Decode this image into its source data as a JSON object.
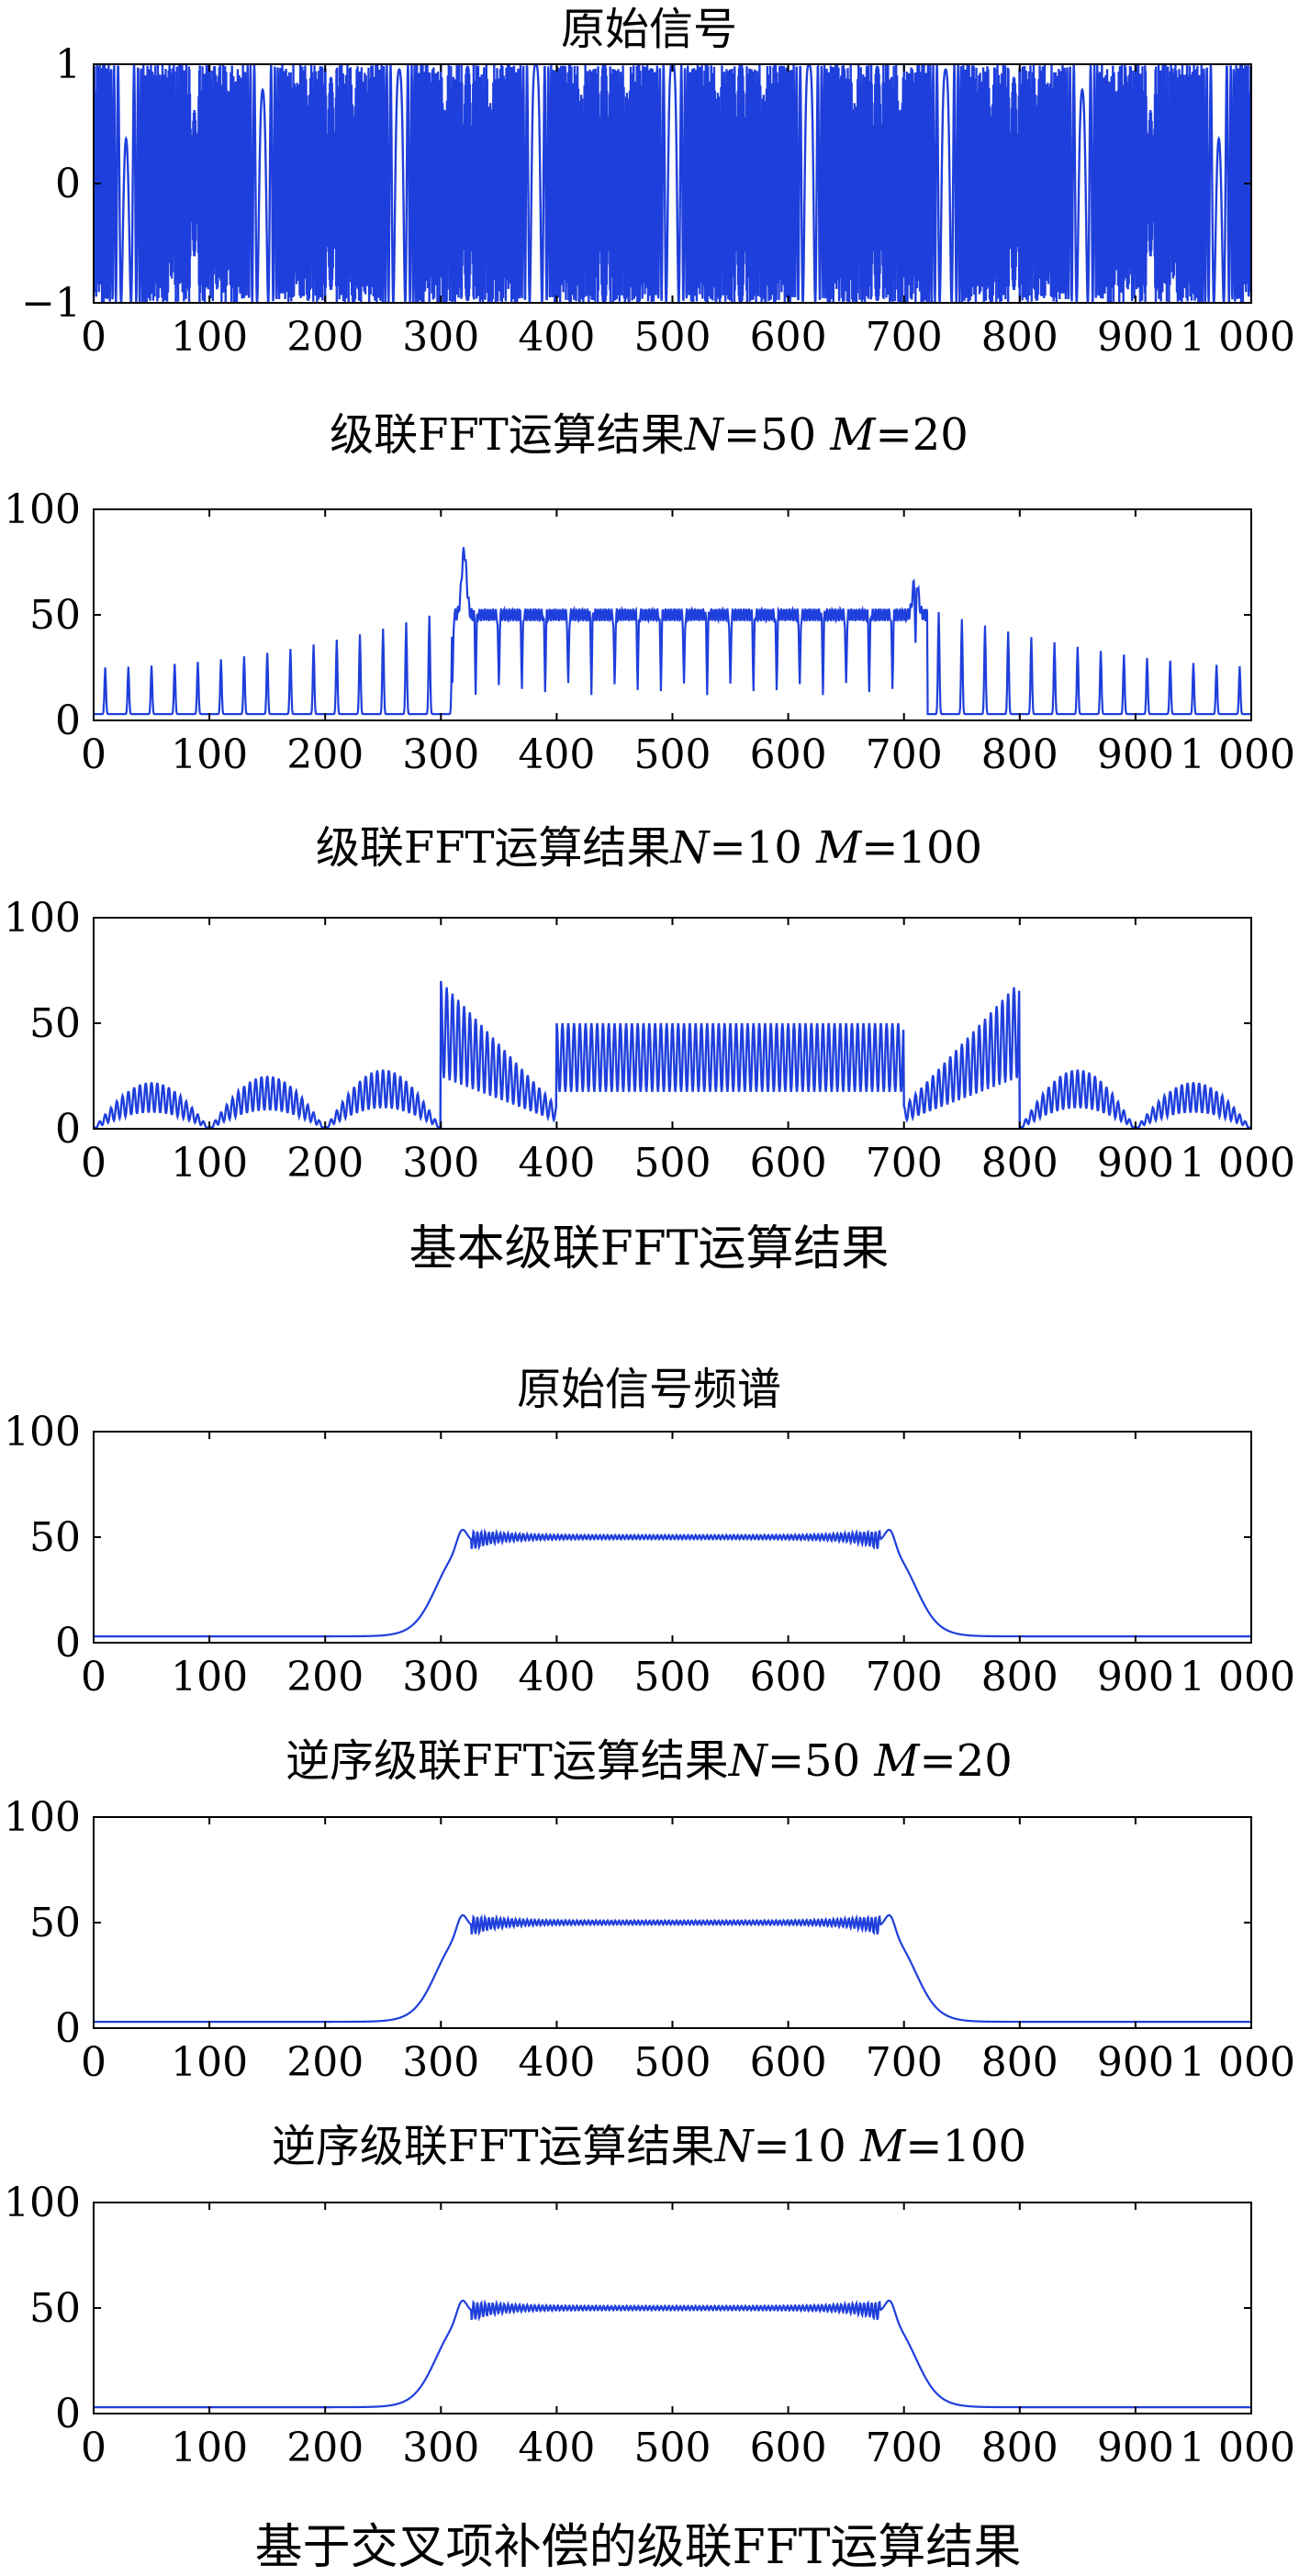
{
  "captions": {
    "top": "基本级联FFT运算结果",
    "bottom": "基于交叉项补偿的级联FFT运算结果"
  },
  "colors": {
    "line": "#1f3fdc",
    "axis": "#000000"
  },
  "chart_data": [
    {
      "id": "c1",
      "type": "line",
      "title": "原始信号",
      "xlim": [
        0,
        1000
      ],
      "ylim": [
        -1,
        1
      ],
      "xticks": [
        "0",
        "100",
        "200",
        "300",
        "400",
        "500",
        "600",
        "700",
        "800",
        "900",
        "1 000"
      ],
      "yticks": [
        "1",
        "0",
        "−1"
      ],
      "ytick_values": [
        1,
        0,
        -1
      ],
      "series": [
        {
          "kind": "chirp",
          "center": 500,
          "rate": 0.000565
        }
      ]
    },
    {
      "id": "c2",
      "type": "line",
      "title": "级联FFT运算结果",
      "title_n": "50",
      "title_m": "20",
      "xlim": [
        0,
        1000
      ],
      "ylim": [
        0,
        100
      ],
      "xticks": [
        "0",
        "100",
        "200",
        "300",
        "400",
        "500",
        "600",
        "700",
        "800",
        "900",
        "1 000"
      ],
      "yticks": [
        "100",
        "50",
        "0"
      ],
      "ytick_values": [
        100,
        50,
        0
      ],
      "series": [
        {
          "kind": "cascade",
          "period": 20,
          "band": [
            310,
            720
          ],
          "level": 50,
          "spike_out": 22,
          "spike_edge": 80,
          "spike_in_low": 15
        }
      ]
    },
    {
      "id": "c3",
      "type": "line",
      "title": "级联FFT运算结果",
      "title_n": "10",
      "title_m": "100",
      "xlim": [
        0,
        1000
      ],
      "ylim": [
        0,
        100
      ],
      "xticks": [
        "0",
        "100",
        "200",
        "300",
        "400",
        "500",
        "600",
        "700",
        "800",
        "900",
        "1 000"
      ],
      "yticks": [
        "100",
        "50",
        "0"
      ],
      "ytick_values": [
        100,
        50,
        0
      ],
      "series": [
        {
          "kind": "lobes",
          "segments": [
            [
              0,
              100,
              "arc",
              22
            ],
            [
              100,
              200,
              "arc",
              25
            ],
            [
              200,
              300,
              "arc",
              28
            ],
            [
              300,
              400,
              "ramp",
              70
            ],
            [
              400,
              500,
              "flat",
              50
            ],
            [
              500,
              600,
              "flat",
              50
            ],
            [
              600,
              700,
              "flat",
              50
            ],
            [
              700,
              800,
              "rampup",
              70
            ],
            [
              800,
              900,
              "arc",
              28
            ],
            [
              900,
              1000,
              "arc",
              22
            ]
          ]
        }
      ]
    },
    {
      "id": "c4",
      "type": "line",
      "title": "原始信号频谱",
      "xlim": [
        0,
        1000
      ],
      "ylim": [
        0,
        100
      ],
      "xticks": [
        "0",
        "100",
        "200",
        "300",
        "400",
        "500",
        "600",
        "700",
        "800",
        "900",
        "1 000"
      ],
      "yticks": [
        "100",
        "50",
        "0"
      ],
      "ytick_values": [
        100,
        50,
        0
      ],
      "series": [
        {
          "kind": "spectrum",
          "band": [
            318,
            688
          ],
          "level": 50,
          "peak": 58,
          "floor": 3
        }
      ]
    },
    {
      "id": "c5",
      "type": "line",
      "title": "逆序级联FFT运算结果",
      "title_n": "50",
      "title_m": "20",
      "xlim": [
        0,
        1000
      ],
      "ylim": [
        0,
        100
      ],
      "xticks": [
        "0",
        "100",
        "200",
        "300",
        "400",
        "500",
        "600",
        "700",
        "800",
        "900",
        "1 000"
      ],
      "yticks": [
        "100",
        "50",
        "0"
      ],
      "ytick_values": [
        100,
        50,
        0
      ],
      "series": [
        {
          "kind": "spectrum",
          "band": [
            318,
            688
          ],
          "level": 50,
          "peak": 58,
          "floor": 3
        }
      ]
    },
    {
      "id": "c6",
      "type": "line",
      "title": "逆序级联FFT运算结果",
      "title_n": "10",
      "title_m": "100",
      "xlim": [
        0,
        1000
      ],
      "ylim": [
        0,
        100
      ],
      "xticks": [
        "0",
        "100",
        "200",
        "300",
        "400",
        "500",
        "600",
        "700",
        "800",
        "900",
        "1 000"
      ],
      "yticks": [
        "100",
        "50",
        "0"
      ],
      "ytick_values": [
        100,
        50,
        0
      ],
      "series": [
        {
          "kind": "spectrum",
          "band": [
            318,
            688
          ],
          "level": 50,
          "peak": 58,
          "floor": 3
        }
      ]
    }
  ]
}
